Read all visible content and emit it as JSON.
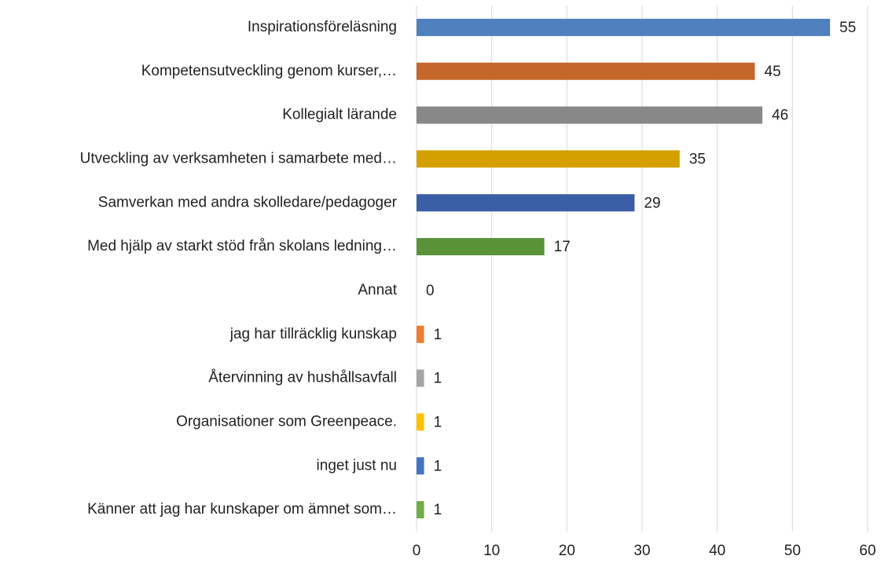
{
  "chart_data": {
    "type": "bar",
    "orientation": "horizontal",
    "categories": [
      "Inspirationsföreläsning",
      "Kompetensutveckling genom kurser,…",
      "Kollegialt lärande",
      "Utveckling av verksamheten i samarbete med…",
      "Samverkan med andra skolledare/pedagoger",
      "Med hjälp av starkt stöd från skolans ledning…",
      "Annat",
      "jag har tillräcklig kunskap",
      "Återvinning av hushållsavfall",
      "Organisationer som Greenpeace.",
      "inget just nu",
      "Känner att jag har kunskaper om ämnet som…"
    ],
    "values": [
      55,
      45,
      46,
      35,
      29,
      17,
      0,
      1,
      1,
      1,
      1,
      1
    ],
    "colors": [
      "#4e81bd",
      "#c5672b",
      "#888888",
      "#d4a000",
      "#3a5fa6",
      "#5a923a",
      "#264478",
      "#ed7d31",
      "#a5a5a5",
      "#ffc000",
      "#4472c4",
      "#70ad47"
    ],
    "xlim": [
      0,
      60
    ],
    "xticks": [
      0,
      10,
      20,
      30,
      40,
      50,
      60
    ],
    "grid": true
  }
}
